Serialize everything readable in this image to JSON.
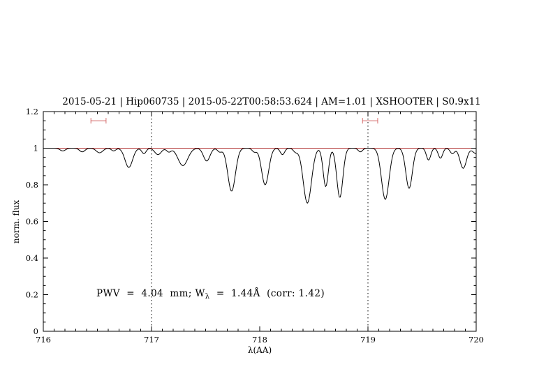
{
  "chart_data": {
    "type": "line",
    "title": "2015-05-21 | Hip060735 | 2015-05-22T00:58:53.624 | AM=1.01 | XSHOOTER | S0.9x11",
    "xlabel": "λ(AA)",
    "ylabel": "norm. flux",
    "xlim": [
      716,
      720
    ],
    "ylim": [
      0,
      1.2
    ],
    "x_ticks": [
      716,
      717,
      718,
      719,
      720
    ],
    "x_tick_labels": [
      "716",
      "717",
      "718",
      "719",
      "720"
    ],
    "x_minor_step": 0.1,
    "y_ticks": [
      0,
      0.2,
      0.4,
      0.6,
      0.8,
      1,
      1.2
    ],
    "y_tick_labels": [
      "0",
      "0.2",
      "0.4",
      "0.6",
      "0.8",
      "1",
      "1.2"
    ],
    "y_minor_step": 0.05,
    "grid": "off",
    "legend": "none",
    "continuum_level": 1.0,
    "dotted_guides_x": [
      717,
      719
    ],
    "range_markers": [
      {
        "x_center": 716.51,
        "half_width": 0.07,
        "y": 1.15
      },
      {
        "x_center": 719.02,
        "half_width": 0.07,
        "y": 1.15
      }
    ],
    "spectrum_model": {
      "continuum": 1.0,
      "sample_step": 0.008,
      "absorption_lines": [
        {
          "center": 716.18,
          "depth": 0.015,
          "sigma": 0.025
        },
        {
          "center": 716.36,
          "depth": 0.02,
          "sigma": 0.025
        },
        {
          "center": 716.52,
          "depth": 0.025,
          "sigma": 0.03
        },
        {
          "center": 716.65,
          "depth": 0.015,
          "sigma": 0.02
        },
        {
          "center": 716.79,
          "depth": 0.105,
          "sigma": 0.035
        },
        {
          "center": 716.93,
          "depth": 0.03,
          "sigma": 0.02
        },
        {
          "center": 717.06,
          "depth": 0.035,
          "sigma": 0.03
        },
        {
          "center": 717.16,
          "depth": 0.02,
          "sigma": 0.02
        },
        {
          "center": 717.29,
          "depth": 0.095,
          "sigma": 0.045
        },
        {
          "center": 717.51,
          "depth": 0.07,
          "sigma": 0.03
        },
        {
          "center": 717.63,
          "depth": 0.02,
          "sigma": 0.02
        },
        {
          "center": 717.74,
          "depth": 0.235,
          "sigma": 0.035
        },
        {
          "center": 717.95,
          "depth": 0.02,
          "sigma": 0.02
        },
        {
          "center": 718.05,
          "depth": 0.2,
          "sigma": 0.033
        },
        {
          "center": 718.21,
          "depth": 0.035,
          "sigma": 0.02
        },
        {
          "center": 718.33,
          "depth": 0.02,
          "sigma": 0.02
        },
        {
          "center": 718.44,
          "depth": 0.3,
          "sigma": 0.038
        },
        {
          "center": 718.61,
          "depth": 0.21,
          "sigma": 0.024
        },
        {
          "center": 718.74,
          "depth": 0.27,
          "sigma": 0.028
        },
        {
          "center": 718.93,
          "depth": 0.02,
          "sigma": 0.02
        },
        {
          "center": 719.16,
          "depth": 0.28,
          "sigma": 0.035
        },
        {
          "center": 719.38,
          "depth": 0.22,
          "sigma": 0.03
        },
        {
          "center": 719.56,
          "depth": 0.065,
          "sigma": 0.02
        },
        {
          "center": 719.67,
          "depth": 0.055,
          "sigma": 0.02
        },
        {
          "center": 719.78,
          "depth": 0.03,
          "sigma": 0.02
        },
        {
          "center": 719.88,
          "depth": 0.11,
          "sigma": 0.03
        },
        {
          "center": 720.0,
          "depth": 0.03,
          "sigma": 0.03
        }
      ]
    },
    "annotation": {
      "prefix": "PWV  =  4.04  mm; W",
      "sub": "λ",
      "suffix": "  =  1.44Å  (corr: 1.42)",
      "x": 716.49,
      "y": 0.19
    },
    "colors": {
      "title": "#0000dd",
      "annotation": "#0000dd",
      "spectrum": "#000000",
      "continuum": "#b03030",
      "marker": "#d46a6a",
      "guide": "#000000",
      "frame": "#000000"
    }
  }
}
